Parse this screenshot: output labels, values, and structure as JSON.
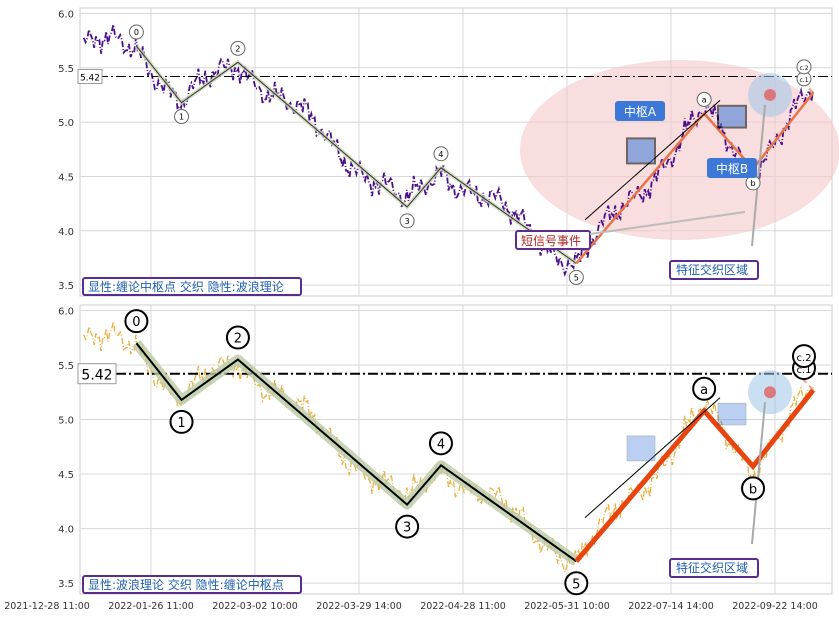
{
  "charts": [
    {
      "panel_label": "显性:缠论中枢点 交织 隐性:波浪理论",
      "ref_level": "5.42",
      "zone_label": "特征交织区域",
      "event_label": "短信号事件",
      "zhongshu_a": "中枢A",
      "zhongshu_b": "中枢B",
      "wave_labels": [
        "0",
        "1",
        "2",
        "3",
        "4",
        "5",
        "a",
        "b",
        "c.1",
        "c.2"
      ]
    },
    {
      "panel_label": "显性:波浪理论 交织 隐性:缠论中枢点",
      "ref_level": "5.42",
      "zone_label": "特征交织区域",
      "wave_labels": [
        "0",
        "1",
        "2",
        "3",
        "4",
        "5",
        "a",
        "b",
        "c.1",
        "c.2"
      ]
    }
  ],
  "chart_data": [
    {
      "type": "line",
      "title": "",
      "xlabel": "",
      "ylabel": "",
      "ylim": [
        3.4,
        6.05
      ],
      "yticks": [
        "3.5",
        "4.0",
        "4.5",
        "5.0",
        "5.5",
        "6.0"
      ],
      "xticks": [
        "2021-12-28 11:00",
        "2022-01-26 11:00",
        "2022-03-02 10:00",
        "2022-03-29 14:00",
        "2022-04-28 11:00",
        "2022-05-31 10:00",
        "2022-07-14 14:00",
        "2022-09-22 14:00"
      ],
      "reference_line": 5.42,
      "wave_points": [
        {
          "label": "0",
          "x": 0.075,
          "y": 5.7
        },
        {
          "label": "1",
          "x": 0.135,
          "y": 5.18
        },
        {
          "label": "2",
          "x": 0.21,
          "y": 5.55
        },
        {
          "label": "3",
          "x": 0.435,
          "y": 4.22
        },
        {
          "label": "4",
          "x": 0.48,
          "y": 4.58
        },
        {
          "label": "5",
          "x": 0.66,
          "y": 3.7
        },
        {
          "label": "a",
          "x": 0.83,
          "y": 5.08
        },
        {
          "label": "b",
          "x": 0.895,
          "y": 4.57
        },
        {
          "label": "c.1",
          "x": 0.975,
          "y": 5.27
        },
        {
          "label": "c.2",
          "x": 1.08,
          "y": 5.38
        }
      ],
      "grid": true
    },
    {
      "type": "line",
      "title": "",
      "xlabel": "",
      "ylabel": "",
      "ylim": [
        3.4,
        6.05
      ],
      "yticks": [
        "3.5",
        "4.0",
        "4.5",
        "5.0",
        "5.5",
        "6.0"
      ],
      "reference_line": 5.42,
      "wave_points": [
        {
          "label": "0",
          "x": 0.075,
          "y": 5.7
        },
        {
          "label": "1",
          "x": 0.135,
          "y": 5.18
        },
        {
          "label": "2",
          "x": 0.21,
          "y": 5.55
        },
        {
          "label": "3",
          "x": 0.435,
          "y": 4.22
        },
        {
          "label": "4",
          "x": 0.48,
          "y": 4.58
        },
        {
          "label": "5",
          "x": 0.66,
          "y": 3.7
        },
        {
          "label": "a",
          "x": 0.83,
          "y": 5.08
        },
        {
          "label": "b",
          "x": 0.895,
          "y": 4.57
        },
        {
          "label": "c.1",
          "x": 0.975,
          "y": 5.27
        },
        {
          "label": "c.2",
          "x": 1.08,
          "y": 5.38
        }
      ],
      "grid": true
    }
  ],
  "colors": {
    "price_top": "#4b0f8a",
    "price_bottom": "#e8b040",
    "wave_top": "#e8744a",
    "wave_bottom": "#e8440e",
    "zone_fill": "#f4c8c8",
    "label_box": "#5b2c8f",
    "zhongshu_fill": "#3c78d8"
  }
}
